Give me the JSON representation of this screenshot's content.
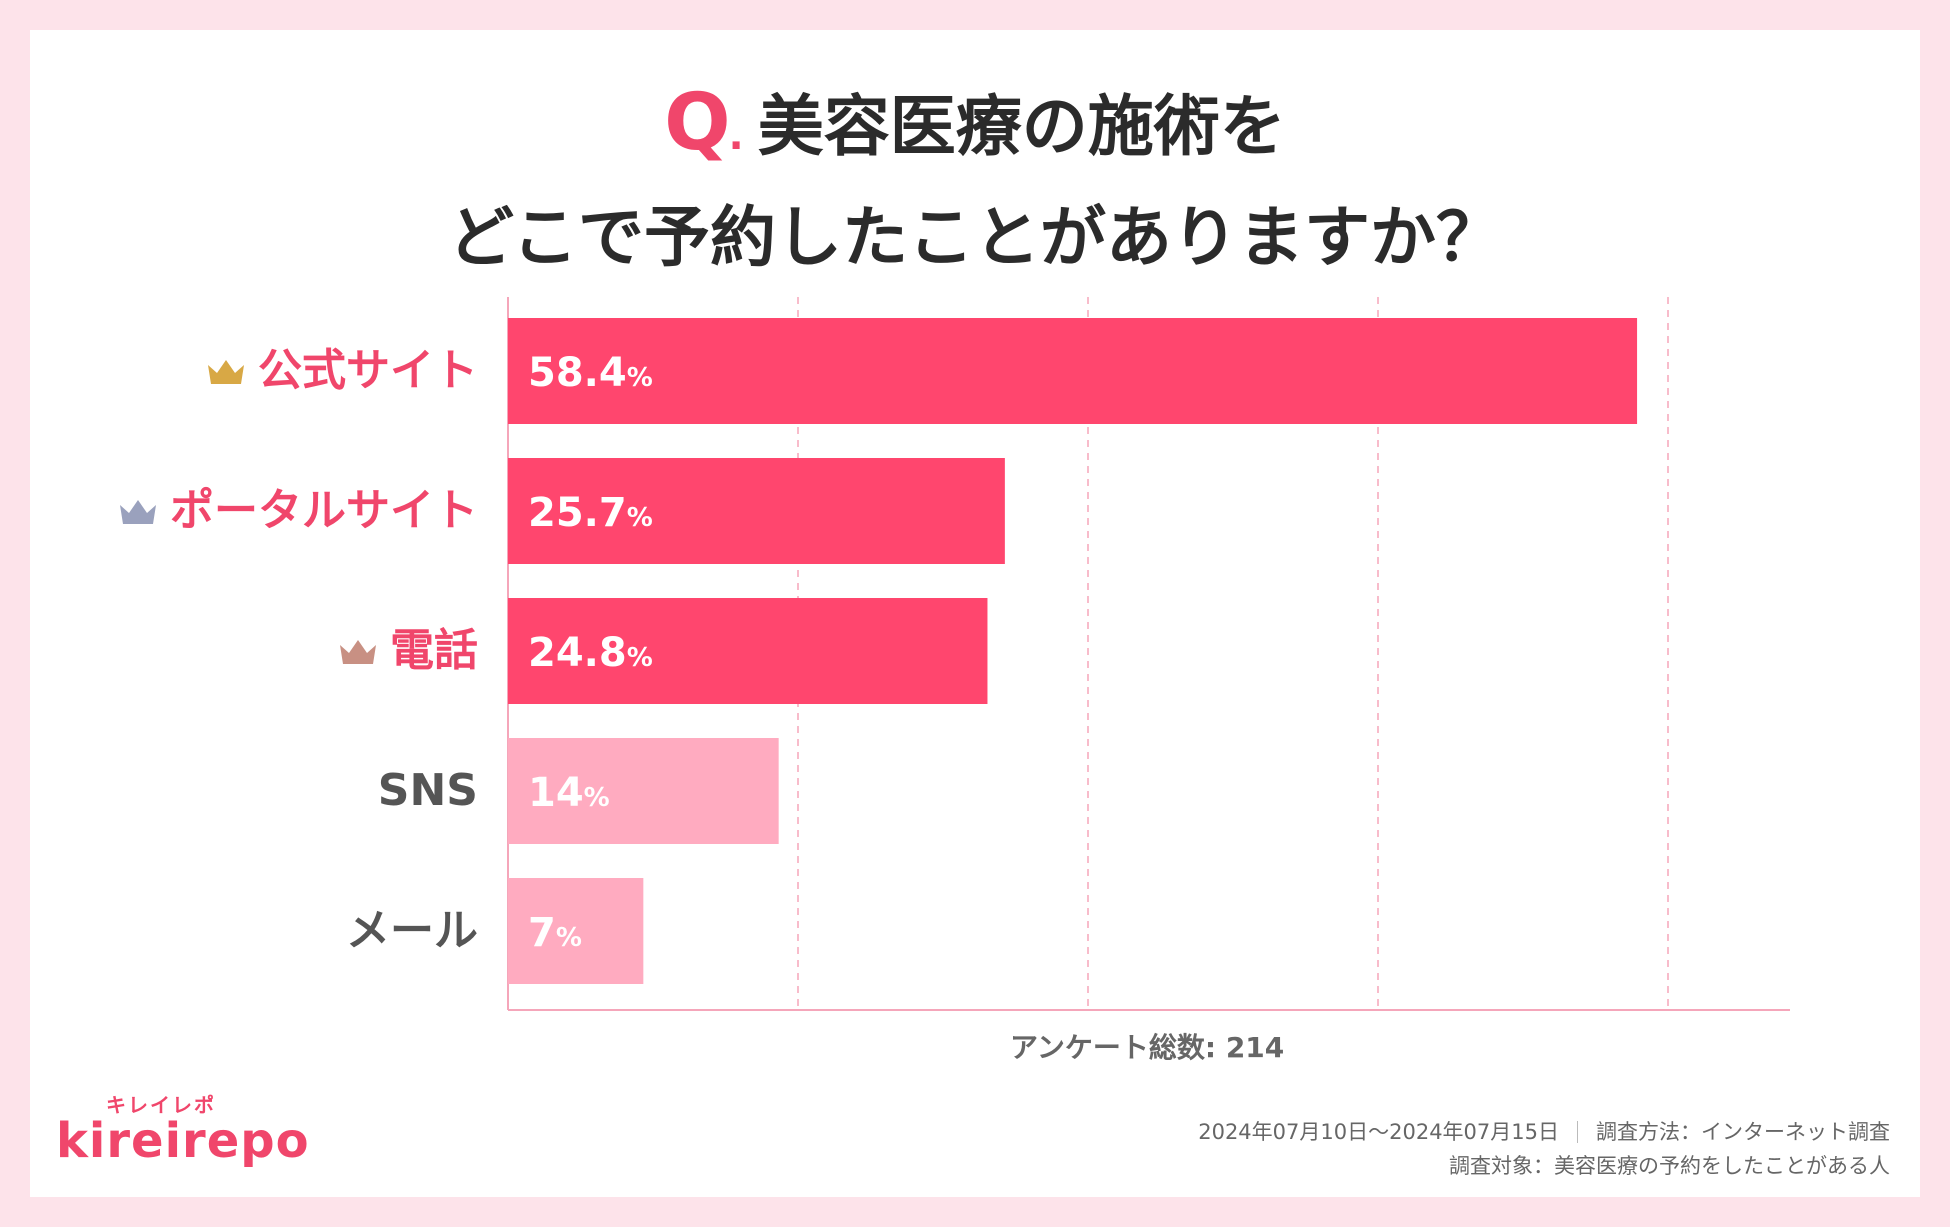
{
  "title": {
    "q_mark": "Q",
    "q_dot": ".",
    "line1": "美容医療の施術を",
    "line2": "どこで予約したことがありますか？"
  },
  "colors": {
    "top_bar": "#ff466e",
    "other_bar": "#ffabc0",
    "accent": "#f0466b",
    "crown_gold": "#d8a845",
    "crown_silver": "#9aa1bd",
    "crown_bronze": "#c89083",
    "grid": "#f5a6ba"
  },
  "chart_data": {
    "type": "bar",
    "orientation": "horizontal",
    "categories": [
      "公式サイト",
      "ポータルサイト",
      "電話",
      "SNS",
      "メール"
    ],
    "values": [
      58.4,
      25.7,
      24.8,
      14,
      7
    ],
    "value_labels": [
      "58.4",
      "25.7",
      "24.8",
      "14",
      "7"
    ],
    "value_unit": "%",
    "ranks": [
      "gold",
      "silver",
      "bronze",
      null,
      null
    ],
    "xlim": [
      0,
      60
    ],
    "grid": true,
    "gridlines_at": [
      15,
      30,
      45,
      60
    ],
    "title": "美容医療の施術をどこで予約したことがありますか？",
    "xlabel": "",
    "ylabel": ""
  },
  "footer": {
    "total": "アンケート総数: 214",
    "period": "2024年07月10日〜2024年07月15日",
    "method": "調査方法：インターネット調査",
    "target": "調査対象：美容医療の予約をしたことがある人"
  },
  "logo": {
    "kana": "キレイレポ",
    "latin": "kireirepo"
  }
}
